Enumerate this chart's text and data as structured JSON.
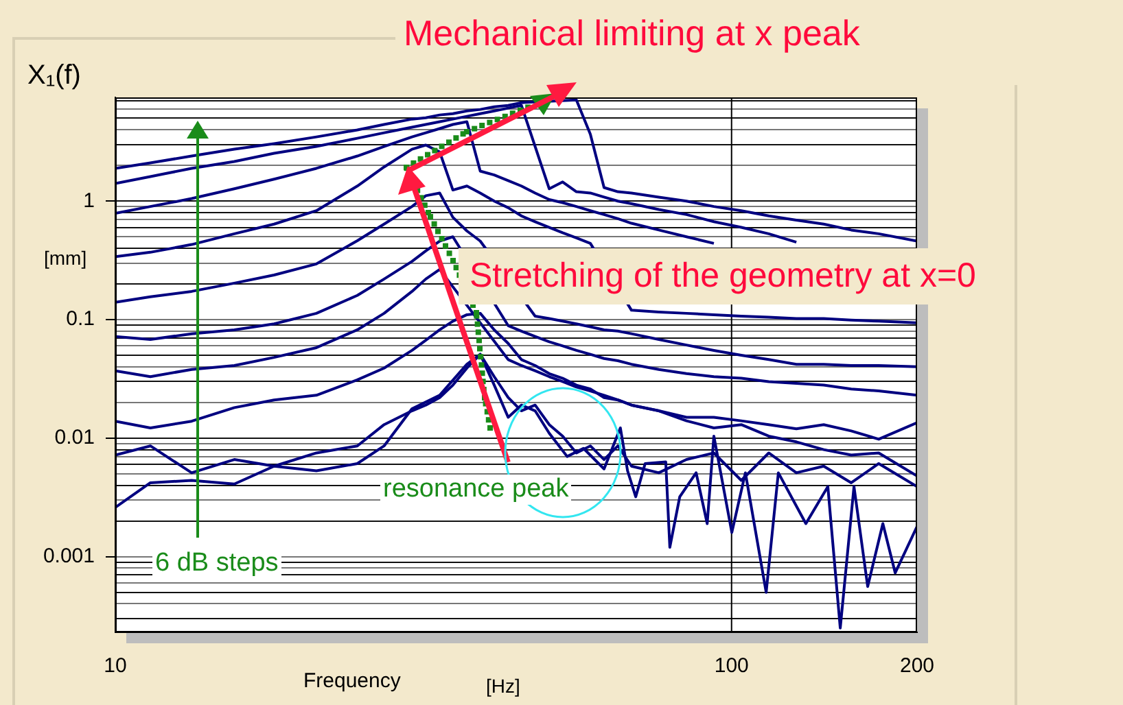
{
  "chart_data": {
    "type": "line",
    "title": "Mechanical limiting at x peak",
    "xlabel": "Frequency",
    "ylabel": "X₁(f)",
    "annotations": [
      "Stretching of the geometry at x=0",
      "resonance peak",
      "6 dB steps",
      "[mm]",
      "[Hz]"
    ],
    "log": "xy",
    "grid": "y",
    "line_style": "solid",
    "ref_lines": [
      {
        "axis": "x",
        "value": 100,
        "color": "#000000"
      }
    ],
    "xlim": [
      10,
      200
    ],
    "xticks": [
      10,
      100,
      200
    ],
    "ylim": [
      0.00023,
      7.5
    ],
    "yticks": [
      {
        "value": 0.0003,
        "label": null
      },
      {
        "value": 0.0004,
        "label": null
      },
      {
        "value": 0.0005,
        "label": null
      },
      {
        "value": 0.0006,
        "label": null
      },
      {
        "value": 0.0007,
        "label": null
      },
      {
        "value": 0.0008,
        "label": null
      },
      {
        "value": 0.0009,
        "label": null
      },
      0.001,
      {
        "value": 0.002,
        "label": null
      },
      {
        "value": 0.003,
        "label": null
      },
      {
        "value": 0.004,
        "label": null
      },
      {
        "value": 0.005,
        "label": null
      },
      {
        "value": 0.006,
        "label": null
      },
      {
        "value": 0.007,
        "label": null
      },
      {
        "value": 0.008,
        "label": null
      },
      {
        "value": 0.009,
        "label": null
      },
      0.01,
      {
        "value": 0.02,
        "label": null
      },
      {
        "value": 0.03,
        "label": null
      },
      {
        "value": 0.04,
        "label": null
      },
      {
        "value": 0.05,
        "label": null
      },
      {
        "value": 0.06,
        "label": null
      },
      {
        "value": 0.07,
        "label": null
      },
      {
        "value": 0.08,
        "label": null
      },
      {
        "value": 0.09,
        "label": null
      },
      0.1,
      {
        "value": 0.2,
        "label": null
      },
      {
        "value": 0.3,
        "label": null
      },
      {
        "value": 0.4,
        "label": null
      },
      {
        "value": 0.5,
        "label": null
      },
      {
        "value": 0.6,
        "label": null
      },
      {
        "value": 0.7,
        "label": null
      },
      {
        "value": 0.8,
        "label": null
      },
      {
        "value": 0.9,
        "label": null
      },
      1,
      {
        "value": 2,
        "label": null
      },
      {
        "value": 3,
        "label": null
      },
      {
        "value": 4,
        "label": null
      },
      {
        "value": 5,
        "label": null
      },
      {
        "value": 6,
        "label": null
      },
      {
        "value": 7,
        "label": null
      }
    ],
    "x": [
      10,
      11.4,
      13.3,
      15.6,
      18.1,
      21.2,
      24.7,
      27.3,
      30.3,
      31.9,
      33.6,
      35.3,
      37.2,
      39.1,
      41.2,
      43.4,
      45.6,
      48,
      50.6,
      53.2,
      56,
      59,
      62.1,
      65.4,
      68.8,
      76.2,
      84.5,
      93.6,
      103.7,
      114.9,
      127.4,
      141.1,
      156.4,
      173.3,
      200
    ],
    "series": [
      {
        "color": "#000080",
        "values": [
          1.89,
          2.1,
          2.4,
          2.74,
          3.05,
          3.48,
          3.98,
          4.43,
          4.92,
          5.05,
          5.33,
          5.47,
          5.77,
          5.93,
          6.25,
          6.42,
          6.77,
          null,
          null,
          null,
          7.14,
          3.67,
          1.3,
          1.2,
          1.17,
          1.08,
          1,
          0.9,
          0.83,
          0.75,
          0.69,
          0.64,
          0.57,
          0.53,
          0.46
        ]
      },
      {
        "color": "#000080",
        "values": [
          1.41,
          1.61,
          1.89,
          2.16,
          2.53,
          2.89,
          3.39,
          3.77,
          4.2,
          4.43,
          4.67,
          4.92,
          5.19,
          5.47,
          5.77,
          6.09,
          6.42,
          null,
          1.27,
          1.45,
          1.2,
          1.17,
          1.08,
          1,
          0.95,
          0.85,
          0.77,
          0.67,
          0.6,
          0.53,
          0.45,
          null,
          null,
          null,
          null
        ]
      },
      {
        "color": "#000080",
        "values": [
          0.79,
          0.9,
          1.05,
          1.27,
          1.53,
          1.89,
          2.4,
          2.89,
          3.48,
          3.77,
          4.09,
          4.43,
          4.67,
          1.79,
          1.66,
          1.49,
          1.34,
          1.17,
          1.03,
          0.97,
          0.9,
          0.83,
          0.77,
          0.71,
          0.65,
          0.57,
          0.5,
          0.44,
          null,
          null,
          null,
          null,
          null,
          null,
          null
        ]
      },
      {
        "color": "#000080",
        "values": [
          0.34,
          0.37,
          0.43,
          0.53,
          0.64,
          0.83,
          1.34,
          1.94,
          2.74,
          2.97,
          2.6,
          1.24,
          1.34,
          1.17,
          1,
          0.88,
          0.75,
          0.67,
          0.6,
          0.54,
          0.49,
          0.44,
          null,
          null,
          0.12,
          0.116,
          0.113,
          0.11,
          0.107,
          0.105,
          0.102,
          0.102,
          0.099,
          0.097,
          0.094
        ]
      },
      {
        "color": "#000080",
        "values": [
          0.14,
          0.156,
          0.173,
          0.203,
          0.238,
          0.295,
          0.463,
          0.64,
          0.9,
          1.11,
          1.17,
          0.73,
          0.56,
          0.46,
          null,
          null,
          null,
          0.107,
          0.102,
          0.097,
          0.092,
          0.087,
          0.082,
          0.08,
          0.076,
          0.068,
          0.061,
          0.055,
          0.05,
          0.046,
          0.042,
          0.042,
          0.041,
          0.041,
          0.04
        ]
      },
      {
        "color": "#000080",
        "values": [
          0.072,
          0.068,
          0.076,
          0.082,
          0.092,
          0.113,
          0.16,
          0.22,
          0.31,
          0.38,
          0.46,
          0.5,
          null,
          null,
          null,
          0.089,
          0.08,
          0.072,
          0.065,
          0.06,
          0.055,
          0.051,
          0.047,
          0.045,
          0.042,
          0.038,
          0.035,
          0.033,
          0.032,
          0.03,
          0.029,
          0.028,
          0.026,
          0.025,
          0.023
        ]
      },
      {
        "color": "#000080",
        "values": [
          0.037,
          0.033,
          0.038,
          0.041,
          0.048,
          0.058,
          0.082,
          0.113,
          0.173,
          0.22,
          0.265,
          null,
          null,
          null,
          null,
          0.046,
          0.041,
          0.037,
          0.033,
          0.03,
          0.027,
          0.025,
          0.023,
          0.021,
          0.019,
          0.017,
          0.015,
          0.015,
          0.014,
          0.013,
          0.012,
          0.013,
          0.0115,
          0.0098,
          0.0135
        ]
      },
      {
        "color": "#000080",
        "values": [
          0.0139,
          0.0122,
          0.0139,
          0.0181,
          0.021,
          0.023,
          0.031,
          0.039,
          0.055,
          0.067,
          0.082,
          0.097,
          0.11,
          0.113,
          0.082,
          0.063,
          0.046,
          0.041,
          0.035,
          0.032,
          0.028,
          0.026,
          0.022,
          0.021,
          0.019,
          0.017,
          0.014,
          0.0122,
          0.013,
          0.0104,
          0.0093,
          0.008,
          0.0072,
          0.0075,
          0.0048
        ]
      },
      {
        "color": "#000080",
        "values": [
          0.0072,
          0.0086,
          0.0051,
          0.0066,
          0.0058,
          0.0075,
          0.0086,
          0.013,
          0.017,
          0.019,
          0.022,
          0.028,
          0.039,
          0.051,
          0.033,
          0.022,
          0.017,
          0.019,
          0.013,
          0.0104,
          0.0075,
          0.0086,
          0.0066,
          0.0086,
          0.0058,
          0.0051,
          0.0066,
          0.0075,
          0.0044,
          0.0075,
          0.0051,
          0.0058,
          0.0042,
          0.0061,
          0.0039
        ]
      },
      {
        "color": "#000080",
        "x": [
          10,
          11.4,
          13.3,
          15.6,
          18.1,
          21.2,
          24.7,
          27.3,
          30.3,
          33.6,
          37.2,
          39.1,
          41.2,
          43.4,
          45.6,
          48,
          50.6,
          54.1,
          57.5,
          62.1,
          66,
          67.8,
          69.9,
          72.4,
          78.2,
          79.4,
          82.4,
          87.6,
          91.3,
          93.6,
          100.1,
          105.3,
          113.8,
          119.1,
          132,
          143.3,
          150.1,
          158,
          166.3,
          176,
          184.3,
          200
        ],
        "values": [
          0.0026,
          0.0042,
          0.0044,
          0.0041,
          0.0058,
          0.0053,
          0.0061,
          0.0086,
          0.0177,
          0.023,
          0.042,
          0.051,
          0.028,
          0.015,
          0.019,
          0.017,
          0.011,
          0.007,
          0.0082,
          0.0055,
          0.0122,
          0.0053,
          0.0032,
          0.0061,
          0.0063,
          0.0012,
          0.0032,
          0.0051,
          0.0019,
          0.0104,
          0.0016,
          0.0051,
          0.0005,
          0.0051,
          0.0019,
          0.0039,
          0.00025,
          0.0039,
          0.00056,
          0.0019,
          0.00073,
          0.0018
        ]
      }
    ]
  }
}
